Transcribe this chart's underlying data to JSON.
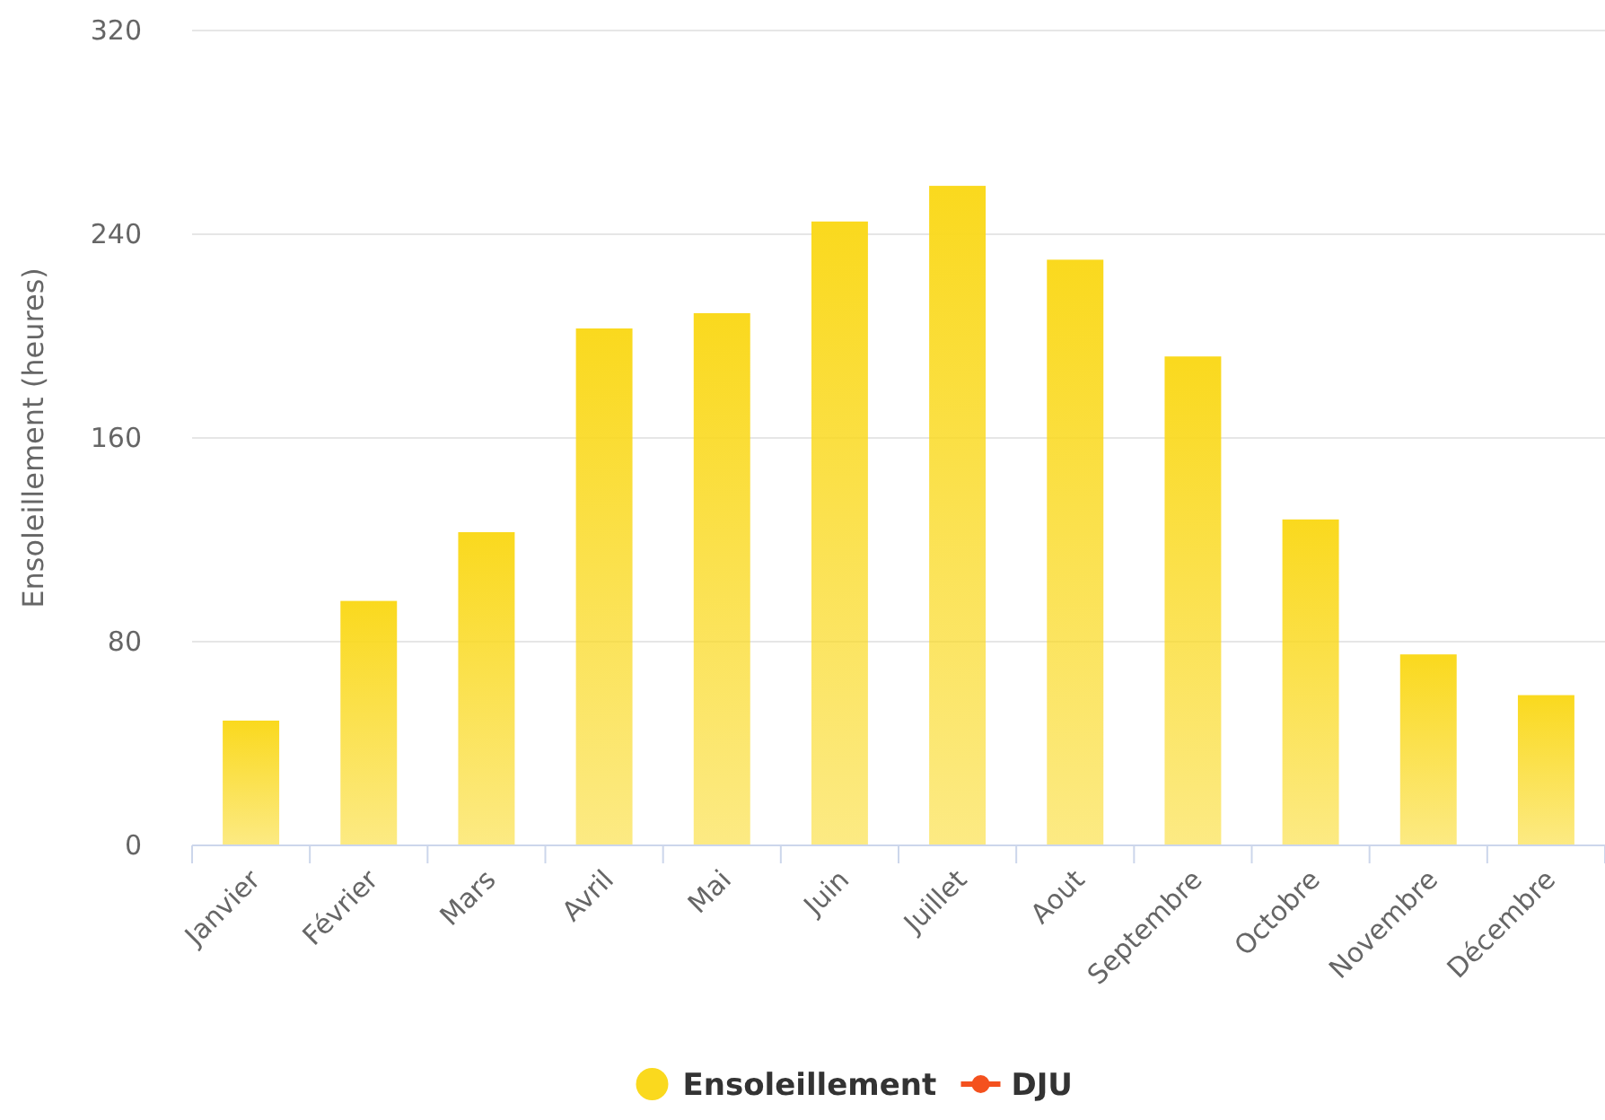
{
  "chart_data": {
    "type": "bar",
    "ylabel": "Ensoleillement (heures)",
    "categories": [
      "Janvier",
      "Février",
      "Mars",
      "Avril",
      "Mai",
      "Juin",
      "Juillet",
      "Aout",
      "Septembre",
      "Octobre",
      "Novembre",
      "Décembre"
    ],
    "series": [
      {
        "name": "Ensoleillement",
        "color": "#fad91e",
        "values": [
          49,
          96,
          123,
          203,
          209,
          245,
          259,
          230,
          192,
          128,
          75,
          59
        ]
      },
      {
        "name": "DJU",
        "type": "line",
        "color": "#f4511e",
        "values": [
          null,
          null,
          null,
          null,
          null,
          null,
          null,
          null,
          null,
          null,
          null,
          null
        ]
      }
    ],
    "ylim": [
      0,
      320
    ],
    "yticks": [
      0,
      80,
      160,
      240,
      320
    ],
    "grid": "y",
    "legend": "bottom",
    "marker": "circle"
  }
}
